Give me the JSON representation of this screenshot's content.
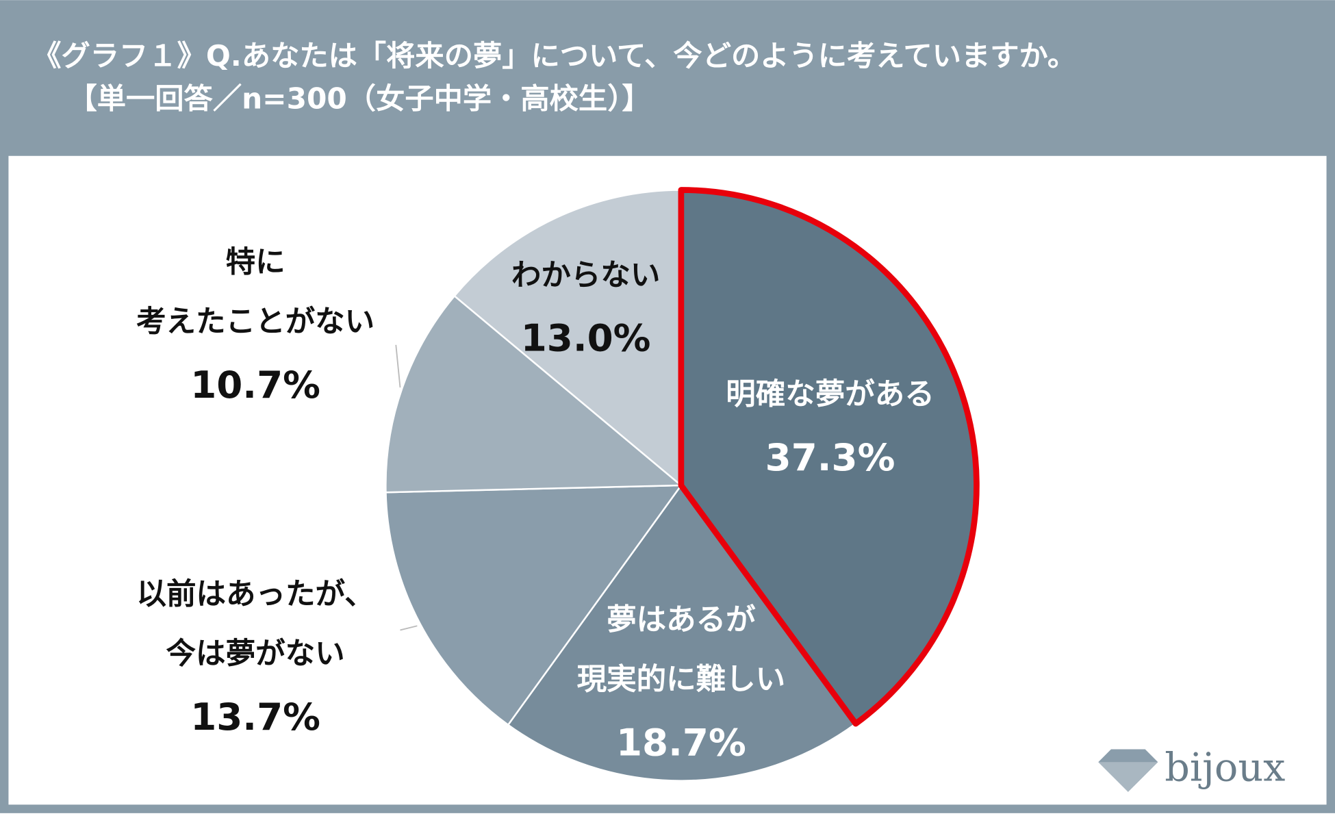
{
  "chart_data": {
    "type": "pie",
    "title": [
      "《グラフ１》Q.あなたは「将来の夢」について、今どのように考えていますか。",
      "【単一回答／n=300（女子中学・高校生）】"
    ],
    "categories": [
      [
        "明確な夢がある"
      ],
      [
        "夢はあるが",
        "現実的に難しい"
      ],
      [
        "以前はあったが、",
        "今は夢がない"
      ],
      [
        "特に",
        "考えたことがない"
      ],
      [
        "わからない"
      ]
    ],
    "values": [
      37.3,
      18.7,
      13.7,
      10.7,
      13.0
    ],
    "value_labels": [
      "37.3%",
      "18.7%",
      "13.7%",
      "10.7%",
      "13.0%"
    ],
    "colors": [
      "#5f7787",
      "#778c9b",
      "#8a9dab",
      "#a1b0bb",
      "#c3ccd4"
    ],
    "highlight": {
      "index": 0,
      "color": "#e8000b"
    }
  },
  "logo": "bijoux"
}
